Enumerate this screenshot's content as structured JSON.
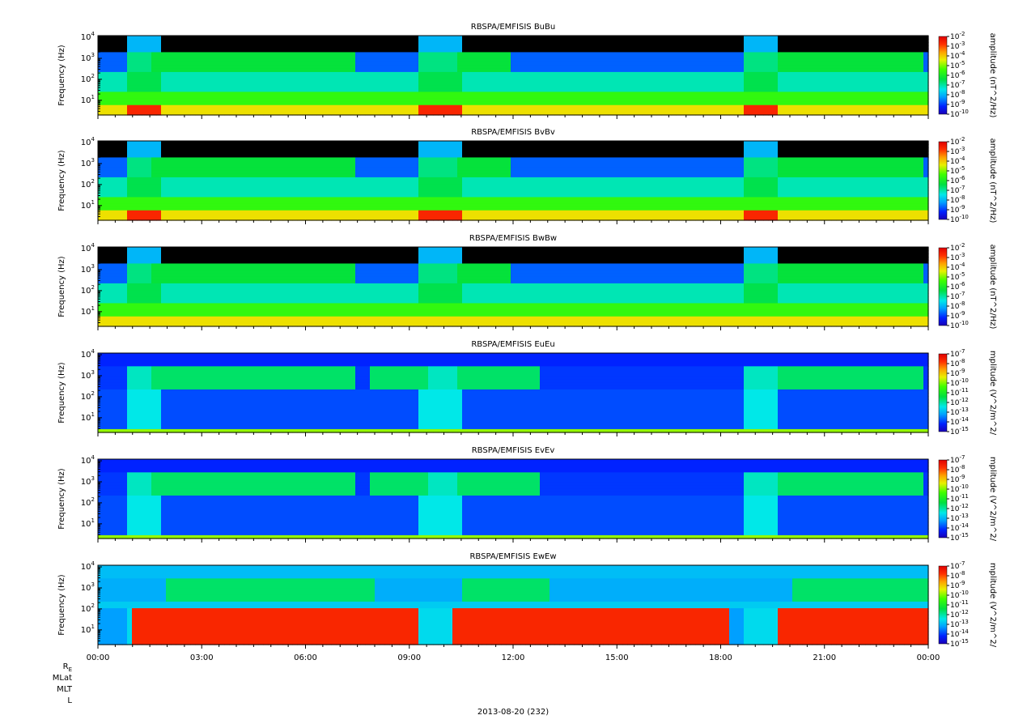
{
  "chart_data": {
    "type": "heatmap",
    "date_label": "2013-08-20 (232)",
    "x_axis": {
      "ticks": [
        "00:00",
        "03:00",
        "06:00",
        "09:00",
        "12:00",
        "15:00",
        "18:00",
        "21:00",
        "00:00"
      ],
      "range_hours": [
        0,
        24
      ],
      "minor_ticks_per_major": 6
    },
    "ephemeris_labels": [
      "R",
      "MLat",
      "MLT",
      "L"
    ],
    "ephemeris_subscript": "E",
    "panels": [
      {
        "title": "RBSPA/EMFISIS  BuBu",
        "ylabel": "Frequency (Hz)",
        "yscale": "log",
        "yrange": [
          2,
          12000
        ],
        "y_ticks": [
          1,
          2,
          3,
          4
        ],
        "colorbar": {
          "label": "amplitude (nT^2/Hz)",
          "exponents": [
            -2,
            -3,
            -4,
            -5,
            -6,
            -7,
            -8,
            -9,
            -10
          ],
          "range": [
            -10,
            -2
          ]
        },
        "kind": "B"
      },
      {
        "title": "RBSPA/EMFISIS  BvBv",
        "ylabel": "Frequency (Hz)",
        "yscale": "log",
        "yrange": [
          2,
          12000
        ],
        "y_ticks": [
          1,
          2,
          3,
          4
        ],
        "colorbar": {
          "label": "amplitude (nT^2/Hz)",
          "exponents": [
            -2,
            -3,
            -4,
            -5,
            -6,
            -7,
            -8,
            -9,
            -10
          ],
          "range": [
            -10,
            -2
          ]
        },
        "kind": "B"
      },
      {
        "title": "RBSPA/EMFISIS  BwBw",
        "ylabel": "Frequency (Hz)",
        "yscale": "log",
        "yrange": [
          2,
          12000
        ],
        "y_ticks": [
          1,
          2,
          3,
          4
        ],
        "colorbar": {
          "label": "amplitude (nT^2/Hz)",
          "exponents": [
            -2,
            -3,
            -4,
            -5,
            -6,
            -7,
            -8,
            -9,
            -10
          ],
          "range": [
            -10,
            -2
          ]
        },
        "kind": "Bw"
      },
      {
        "title": "RBSPA/EMFISIS  EuEu",
        "ylabel": "Frequency (Hz)",
        "yscale": "log",
        "yrange": [
          2,
          12000
        ],
        "y_ticks": [
          1,
          2,
          3,
          4
        ],
        "colorbar": {
          "label": "mplitude (V^2/m^2/",
          "exponents": [
            -7,
            -8,
            -9,
            -10,
            -11,
            -12,
            -13,
            -14,
            -15
          ],
          "range": [
            -15,
            -7
          ]
        },
        "kind": "E"
      },
      {
        "title": "RBSPA/EMFISIS  EvEv",
        "ylabel": "Frequency (Hz)",
        "yscale": "log",
        "yrange": [
          2,
          12000
        ],
        "y_ticks": [
          1,
          2,
          3,
          4
        ],
        "colorbar": {
          "label": "mplitude (V^2/m^2/",
          "exponents": [
            -7,
            -8,
            -9,
            -10,
            -11,
            -12,
            -13,
            -14,
            -15
          ],
          "range": [
            -15,
            -7
          ]
        },
        "kind": "E"
      },
      {
        "title": "RBSPA/EMFISIS  EwEw",
        "ylabel": "Frequency (Hz)",
        "yscale": "log",
        "yrange": [
          2,
          12000
        ],
        "y_ticks": [
          1,
          2,
          3,
          4
        ],
        "colorbar": {
          "label": "mplitude (V^2/m^2/",
          "exponents": [
            -7,
            -8,
            -9,
            -10,
            -11,
            -12,
            -13,
            -14,
            -15
          ],
          "range": [
            -15,
            -7
          ]
        },
        "kind": "Ew"
      }
    ]
  }
}
